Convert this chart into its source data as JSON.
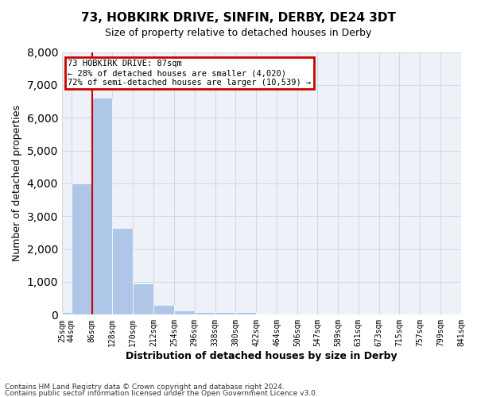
{
  "title_line1": "73, HOBKIRK DRIVE, SINFIN, DERBY, DE24 3DT",
  "title_line2": "Size of property relative to detached houses in Derby",
  "xlabel": "Distribution of detached houses by size in Derby",
  "ylabel": "Number of detached properties",
  "footer_line1": "Contains HM Land Registry data © Crown copyright and database right 2024.",
  "footer_line2": "Contains public sector information licensed under the Open Government Licence v3.0.",
  "annotation_line1": "73 HOBKIRK DRIVE: 87sqm",
  "annotation_line2": "← 28% of detached houses are smaller (4,020)",
  "annotation_line3": "72% of semi-detached houses are larger (10,539) →",
  "property_size": 87,
  "bar_edges": [
    25,
    44,
    86,
    128,
    170,
    212,
    254,
    296,
    338,
    380,
    422,
    464,
    506,
    547,
    589,
    631,
    673,
    715,
    757,
    799,
    841
  ],
  "bar_heights": [
    70,
    4000,
    6600,
    2650,
    950,
    300,
    120,
    90,
    90,
    70,
    0,
    0,
    0,
    0,
    0,
    0,
    0,
    0,
    0,
    0
  ],
  "bar_color": "#aec6e8",
  "bar_edge_color": "#aec6e8",
  "vline_color": "#cc0000",
  "vline_x": 87,
  "annotation_box_color": "#cc0000",
  "grid_color": "#d0d8e8",
  "background_color": "#eef2f8",
  "ylim": [
    0,
    8000
  ],
  "yticks": [
    0,
    1000,
    2000,
    3000,
    4000,
    5000,
    6000,
    7000,
    8000
  ],
  "tick_labels": [
    "25sqm",
    "44sqm",
    "86sqm",
    "128sqm",
    "170sqm",
    "212sqm",
    "254sqm",
    "296sqm",
    "338sqm",
    "380sqm",
    "422sqm",
    "464sqm",
    "506sqm",
    "547sqm",
    "589sqm",
    "631sqm",
    "673sqm",
    "715sqm",
    "757sqm",
    "799sqm",
    "841sqm"
  ]
}
